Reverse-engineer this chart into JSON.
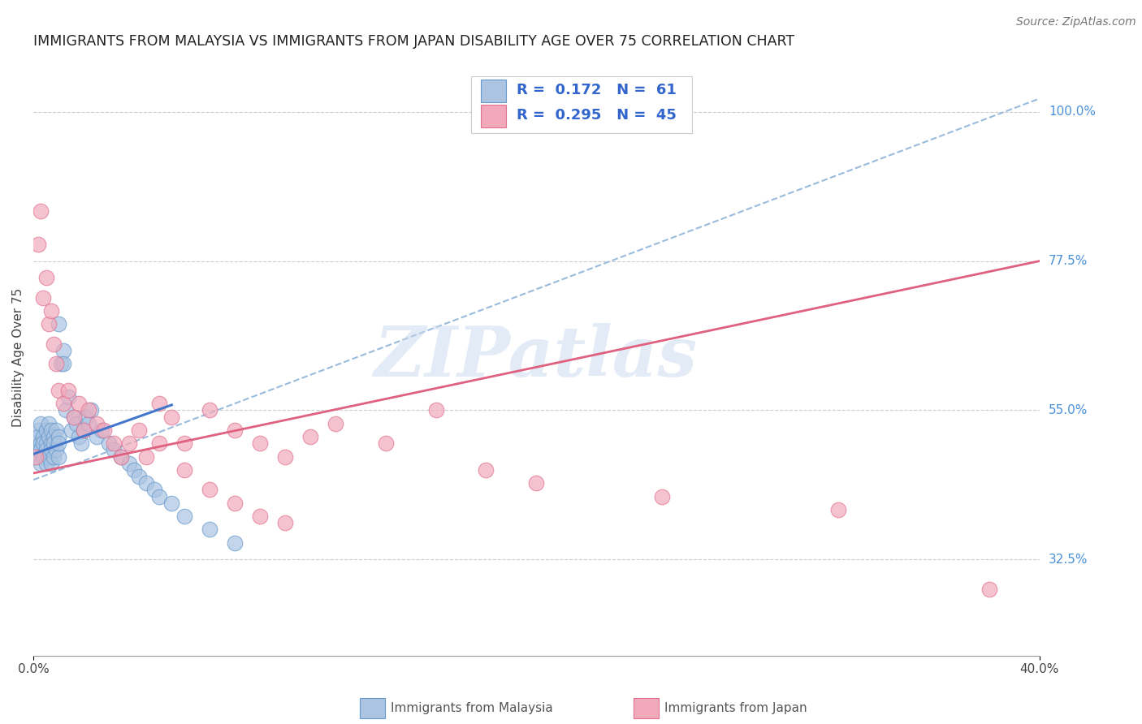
{
  "title": "IMMIGRANTS FROM MALAYSIA VS IMMIGRANTS FROM JAPAN DISABILITY AGE OVER 75 CORRELATION CHART",
  "source": "Source: ZipAtlas.com",
  "ylabel": "Disability Age Over 75",
  "ytick_labels": [
    "100.0%",
    "77.5%",
    "55.0%",
    "32.5%"
  ],
  "legend1_label": "R =  0.172   N =  61",
  "legend2_label": "R =  0.295   N =  45",
  "watermark": "ZIPatlas",
  "malaysia_color": "#aac4e2",
  "japan_color": "#f2aabb",
  "malaysia_edge_color": "#6699cc",
  "japan_edge_color": "#e07090",
  "malaysia_line_color": "#4477cc",
  "japan_line_color": "#e06080",
  "dashed_line_color": "#99bbdd",
  "x_min": 0.0,
  "x_max": 0.4,
  "y_min": 0.18,
  "y_max": 1.08,
  "malaysia_scatter_x": [
    0.001,
    0.001,
    0.002,
    0.002,
    0.002,
    0.003,
    0.003,
    0.003,
    0.003,
    0.004,
    0.004,
    0.004,
    0.005,
    0.005,
    0.005,
    0.005,
    0.006,
    0.006,
    0.006,
    0.007,
    0.007,
    0.007,
    0.007,
    0.008,
    0.008,
    0.008,
    0.009,
    0.009,
    0.01,
    0.01,
    0.01,
    0.011,
    0.012,
    0.012,
    0.013,
    0.014,
    0.015,
    0.016,
    0.017,
    0.018,
    0.019,
    0.02,
    0.021,
    0.022,
    0.023,
    0.025,
    0.027,
    0.03,
    0.032,
    0.035,
    0.038,
    0.04,
    0.042,
    0.045,
    0.048,
    0.05,
    0.055,
    0.06,
    0.07,
    0.08,
    0.01
  ],
  "malaysia_scatter_y": [
    0.5,
    0.48,
    0.52,
    0.49,
    0.51,
    0.5,
    0.47,
    0.53,
    0.49,
    0.51,
    0.48,
    0.5,
    0.52,
    0.47,
    0.5,
    0.49,
    0.51,
    0.48,
    0.53,
    0.5,
    0.47,
    0.52,
    0.49,
    0.51,
    0.48,
    0.5,
    0.52,
    0.49,
    0.51,
    0.48,
    0.5,
    0.62,
    0.64,
    0.62,
    0.55,
    0.57,
    0.52,
    0.54,
    0.53,
    0.51,
    0.5,
    0.52,
    0.54,
    0.53,
    0.55,
    0.51,
    0.52,
    0.5,
    0.49,
    0.48,
    0.47,
    0.46,
    0.45,
    0.44,
    0.43,
    0.42,
    0.41,
    0.39,
    0.37,
    0.35,
    0.68
  ],
  "japan_scatter_x": [
    0.001,
    0.002,
    0.003,
    0.004,
    0.005,
    0.006,
    0.007,
    0.008,
    0.009,
    0.01,
    0.012,
    0.014,
    0.016,
    0.018,
    0.02,
    0.022,
    0.025,
    0.028,
    0.032,
    0.035,
    0.038,
    0.042,
    0.045,
    0.05,
    0.055,
    0.06,
    0.07,
    0.08,
    0.09,
    0.1,
    0.05,
    0.06,
    0.07,
    0.08,
    0.09,
    0.1,
    0.11,
    0.12,
    0.14,
    0.16,
    0.18,
    0.2,
    0.25,
    0.32,
    0.38
  ],
  "japan_scatter_y": [
    0.48,
    0.8,
    0.85,
    0.72,
    0.75,
    0.68,
    0.7,
    0.65,
    0.62,
    0.58,
    0.56,
    0.58,
    0.54,
    0.56,
    0.52,
    0.55,
    0.53,
    0.52,
    0.5,
    0.48,
    0.5,
    0.52,
    0.48,
    0.5,
    0.54,
    0.46,
    0.43,
    0.41,
    0.39,
    0.38,
    0.56,
    0.5,
    0.55,
    0.52,
    0.5,
    0.48,
    0.51,
    0.53,
    0.5,
    0.55,
    0.46,
    0.44,
    0.42,
    0.4,
    0.28
  ],
  "malaysia_trend_x": [
    0.0,
    0.055
  ],
  "malaysia_trend_y": [
    0.484,
    0.558
  ],
  "japan_trend_x": [
    0.0,
    0.4
  ],
  "japan_trend_y": [
    0.455,
    0.775
  ],
  "diag_line_x": [
    0.0,
    0.4
  ],
  "diag_line_y": [
    0.445,
    1.02
  ]
}
